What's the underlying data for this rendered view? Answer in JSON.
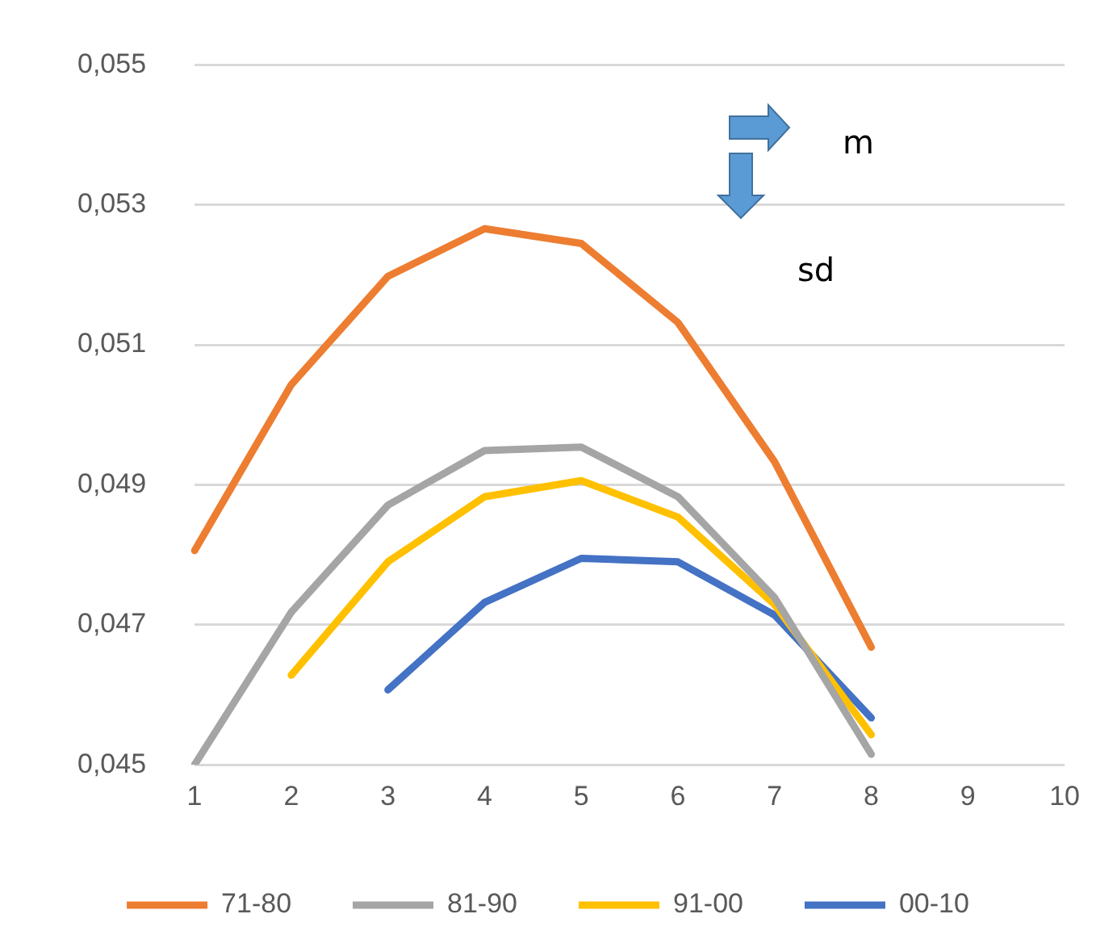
{
  "chart_data": {
    "type": "line",
    "categories": [
      "1",
      "2",
      "3",
      "4",
      "5",
      "6",
      "7",
      "8",
      "9",
      "10"
    ],
    "series": [
      {
        "name": "71-80",
        "color": "#ed7d31",
        "values": [
          0.04806,
          0.05043,
          0.05198,
          0.05266,
          0.05245,
          0.05132,
          0.04933,
          0.04668,
          null,
          null
        ]
      },
      {
        "name": "81-90",
        "color": "#a5a5a5",
        "values": [
          0.045,
          0.04718,
          0.04871,
          0.04949,
          0.04954,
          0.04883,
          0.04739,
          0.04515,
          null,
          null
        ]
      },
      {
        "name": "91-00",
        "color": "#ffc000",
        "values": [
          null,
          0.04628,
          0.0479,
          0.04883,
          0.04906,
          0.04854,
          0.04729,
          0.04543,
          null,
          null
        ]
      },
      {
        "name": "00-10",
        "color": "#4472c4",
        "values": [
          null,
          null,
          0.04607,
          0.04732,
          0.04795,
          0.0479,
          0.04714,
          0.04567,
          null,
          null
        ]
      }
    ],
    "ylim": [
      0.045,
      0.055
    ],
    "yticks": [
      {
        "value": 0.045,
        "label": "0,045"
      },
      {
        "value": 0.047,
        "label": "0,047"
      },
      {
        "value": 0.049,
        "label": "0,049"
      },
      {
        "value": 0.051,
        "label": "0,051"
      },
      {
        "value": 0.053,
        "label": "0,053"
      },
      {
        "value": 0.055,
        "label": "0,055"
      }
    ],
    "annotations": [
      "m",
      "sd"
    ],
    "grid": "y",
    "legend": "bottom",
    "marker": "none",
    "line_style": "solid"
  }
}
